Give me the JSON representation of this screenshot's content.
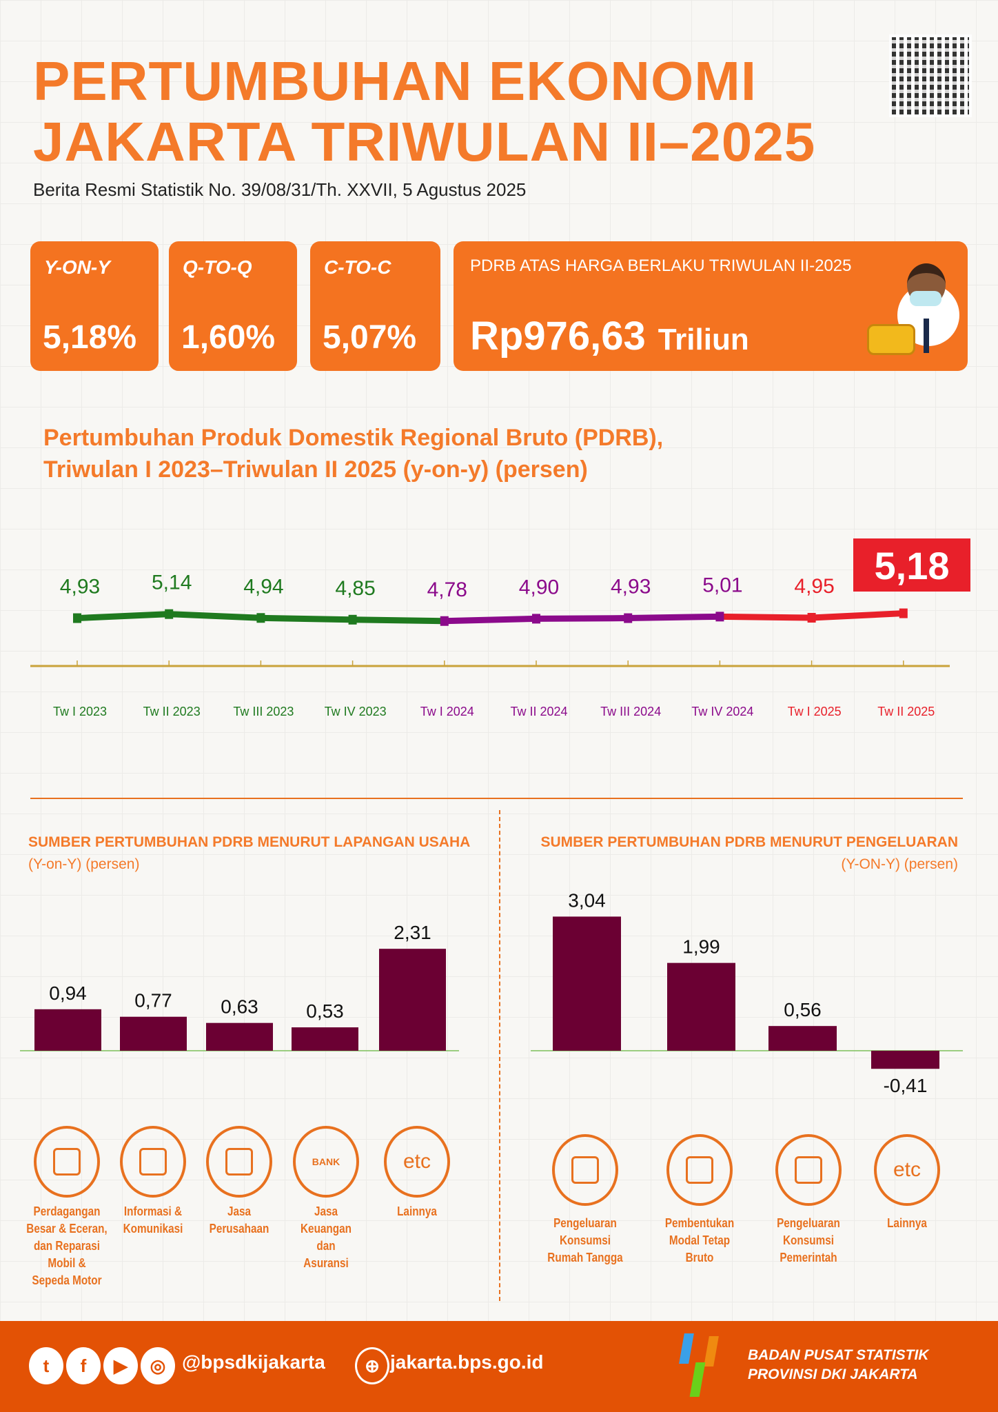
{
  "header": {
    "title_line1": "PERTUMBUHAN EKONOMI",
    "title_line2": "JAKARTA TRIWULAN II–2025",
    "subtitle": "Berita Resmi Statistik No. 39/08/31/Th. XXVII, 5 Agustus 2025"
  },
  "cards": [
    {
      "label": "Y-ON-Y",
      "value": "5,18%"
    },
    {
      "label": "Q-TO-Q",
      "value": "1,60%"
    },
    {
      "label": "C-TO-C",
      "value": "5,07%"
    }
  ],
  "pdrb": {
    "label": "PDRB ATAS HARGA BERLAKU TRIWULAN II-2025",
    "value": "Rp976,63",
    "unit": "Triliun"
  },
  "colors": {
    "orange": "#f47320",
    "green": "#1f7a1f",
    "purple": "#8b0a8b",
    "red": "#e8202a",
    "bar": "#6b0033",
    "footer": "#e35205"
  },
  "chart_data": [
    {
      "type": "line",
      "title_line1": "Pertumbuhan Produk Domestik Regional Bruto (PDRB),",
      "title_line2": "Triwulan I 2023–Triwulan II 2025 (y-on-y) (persen)",
      "categories": [
        "Tw I 2023",
        "Tw II 2023",
        "Tw III 2023",
        "Tw IV 2023",
        "Tw I 2024",
        "Tw II 2024",
        "Tw III 2024",
        "Tw IV 2024",
        "Tw I 2025",
        "Tw II 2025"
      ],
      "values": [
        4.93,
        5.14,
        4.94,
        4.85,
        4.78,
        4.9,
        4.93,
        5.01,
        4.95,
        5.18
      ],
      "labels": [
        "4,93",
        "5,14",
        "4,94",
        "4,85",
        "4,78",
        "4,90",
        "4,93",
        "5,01",
        "4,95",
        "5,18"
      ],
      "year_colors": [
        "green",
        "green",
        "green",
        "green",
        "purple",
        "purple",
        "purple",
        "purple",
        "red",
        "red"
      ],
      "grid": false
    },
    {
      "type": "bar",
      "title": "SUMBER PERTUMBUHAN PDRB MENURUT LAPANGAN USAHA",
      "subtitle": "(Y-on-Y) (persen)",
      "categories": [
        "Perdagangan Besar & Eceran, dan Reparasi Mobil & Sepeda Motor",
        "Informasi & Komunikasi",
        "Jasa Perusahaan",
        "Jasa Keuangan dan Asuransi",
        "Lainnya"
      ],
      "category_lines": [
        [
          "Perdagangan",
          "Besar & Eceran,",
          "dan Reparasi",
          "Mobil &",
          "Sepeda Motor"
        ],
        [
          "Informasi &",
          "Komunikasi"
        ],
        [
          "Jasa",
          "Perusahaan"
        ],
        [
          "Jasa",
          "Keuangan",
          "dan",
          "Asuransi"
        ],
        [
          "Lainnya"
        ]
      ],
      "icons": [
        "trade-icon",
        "satellite-icon",
        "briefcase-hand-icon",
        "bank-icon",
        "etc-icon"
      ],
      "values": [
        0.94,
        0.77,
        0.63,
        0.53,
        2.31
      ],
      "labels": [
        "0,94",
        "0,77",
        "0,63",
        "0,53",
        "2,31"
      ]
    },
    {
      "type": "bar",
      "title": "SUMBER PERTUMBUHAN PDRB MENURUT PENGELUARAN",
      "subtitle": "(Y-ON-Y) (persen)",
      "categories": [
        "Pengeluaran Konsumsi Rumah Tangga",
        "Pembentukan Modal Tetap Bruto",
        "Pengeluaran Konsumsi Pemerintah",
        "Lainnya"
      ],
      "category_lines": [
        [
          "Pengeluaran",
          "Konsumsi",
          "Rumah Tangga"
        ],
        [
          "Pembentukan",
          "Modal Tetap Bruto"
        ],
        [
          "Pengeluaran",
          "Konsumsi",
          "Pemerintah"
        ],
        [
          "Lainnya"
        ]
      ],
      "icons": [
        "household-consumption-icon",
        "robot-arm-icon",
        "government-building-icon",
        "etc-icon"
      ],
      "values": [
        3.04,
        1.99,
        0.56,
        -0.41
      ],
      "labels": [
        "3,04",
        "1,99",
        "0,56",
        "-0,41"
      ]
    }
  ],
  "etc_text": "etc",
  "bank_text": "BANK",
  "footer": {
    "handle": "@bpsdkijakarta",
    "website": "jakarta.bps.go.id",
    "org_line1": "BADAN PUSAT STATISTIK",
    "org_line2": "PROVINSI DKI JAKARTA"
  }
}
